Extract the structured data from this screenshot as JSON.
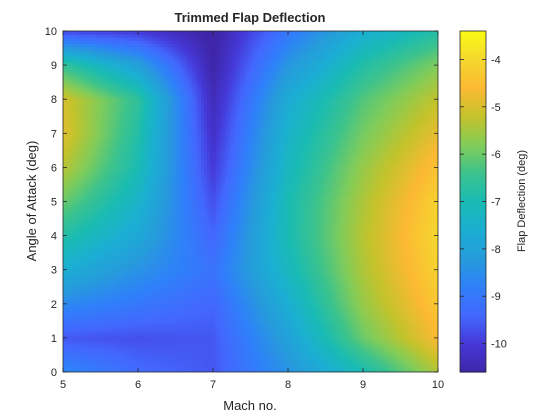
{
  "chart_data": {
    "type": "heatmap",
    "title": "Trimmed Flap Deflection",
    "xlabel": "Mach no.",
    "ylabel": "Angle of Attack (deg)",
    "colorbar_label": "Flap Deflection (deg)",
    "xlim": [
      5,
      10
    ],
    "ylim": [
      0,
      10
    ],
    "clim": [
      -10.6,
      -3.4
    ],
    "x": [
      5,
      6,
      7,
      8,
      9,
      10
    ],
    "y": [
      0,
      1,
      2,
      3,
      4,
      5,
      6,
      7,
      8,
      9,
      10
    ],
    "z": [
      [
        -8.6,
        -9.3,
        -9.6,
        -8.4,
        -7.0,
        -5.4
      ],
      [
        -9.6,
        -9.7,
        -9.6,
        -8.0,
        -6.0,
        -4.6
      ],
      [
        -8.6,
        -9.0,
        -9.4,
        -7.6,
        -5.6,
        -4.3
      ],
      [
        -7.6,
        -8.4,
        -9.1,
        -7.2,
        -5.4,
        -4.1
      ],
      [
        -6.8,
        -7.8,
        -9.4,
        -7.0,
        -5.3,
        -4.0
      ],
      [
        -6.0,
        -7.4,
        -9.7,
        -7.0,
        -5.4,
        -4.1
      ],
      [
        -5.3,
        -7.0,
        -10.0,
        -7.2,
        -5.6,
        -4.4
      ],
      [
        -4.9,
        -6.8,
        -10.2,
        -7.4,
        -5.9,
        -4.8
      ],
      [
        -5.0,
        -6.6,
        -10.4,
        -7.7,
        -6.2,
        -5.2
      ],
      [
        -6.5,
        -8.0,
        -10.6,
        -8.3,
        -6.8,
        -5.8
      ],
      [
        -9.8,
        -10.0,
        -10.7,
        -9.0,
        -7.6,
        -6.8
      ]
    ],
    "xticks": [
      "5",
      "6",
      "7",
      "8",
      "9",
      "10"
    ],
    "yticks": [
      "0",
      "1",
      "2",
      "3",
      "4",
      "5",
      "6",
      "7",
      "8",
      "9",
      "10"
    ],
    "colorbar_ticks": [
      -10,
      -9,
      -8,
      -7,
      -6,
      -5,
      -4
    ],
    "colorbar_tick_labels": [
      "-10",
      "-9",
      "-8",
      "-7",
      "-6",
      "-5",
      "-4"
    ],
    "colormap": [
      "#3e26a8",
      "#4538d7",
      "#4367fd",
      "#2f80fa",
      "#269bdb",
      "#1baed3",
      "#19bbb4",
      "#3cc38d",
      "#81cc59",
      "#c3c32b",
      "#fcb933",
      "#f5d72e",
      "#f9fb15"
    ],
    "grid": false
  }
}
